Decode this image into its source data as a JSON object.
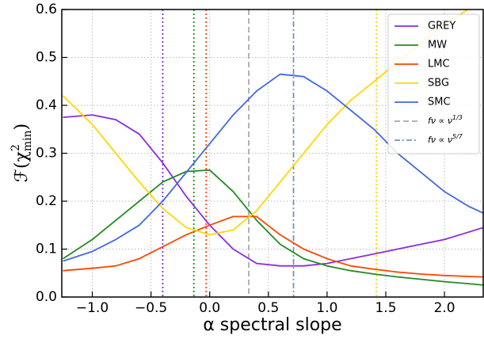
{
  "chart_data": {
    "type": "line",
    "xlabel": "α spectral slope",
    "ylabel": {
      "main": "ℱ(χ",
      "sup": "2",
      "sub": "min",
      "close": ")"
    },
    "x": [
      -1.25,
      -1.0,
      -0.8,
      -0.6,
      -0.4,
      -0.2,
      0,
      0.2,
      0.4,
      0.6,
      0.8,
      1.0,
      1.2,
      1.4,
      1.6,
      1.8,
      2.0,
      2.2,
      2.33
    ],
    "series": [
      {
        "name": "GREY",
        "color": "#8a2be2",
        "values": [
          0.375,
          0.38,
          0.37,
          0.34,
          0.28,
          0.21,
          0.15,
          0.1,
          0.07,
          0.065,
          0.065,
          0.07,
          0.08,
          0.09,
          0.1,
          0.11,
          0.12,
          0.135,
          0.145
        ]
      },
      {
        "name": "MW",
        "color": "#228b22",
        "values": [
          0.08,
          0.12,
          0.16,
          0.2,
          0.24,
          0.262,
          0.265,
          0.22,
          0.16,
          0.11,
          0.08,
          0.065,
          0.055,
          0.048,
          0.042,
          0.037,
          0.032,
          0.028,
          0.025
        ]
      },
      {
        "name": "LMC",
        "color": "#ff4500",
        "values": [
          0.055,
          0.06,
          0.065,
          0.08,
          0.105,
          0.13,
          0.15,
          0.168,
          0.168,
          0.13,
          0.1,
          0.08,
          0.065,
          0.058,
          0.052,
          0.048,
          0.045,
          0.043,
          0.042
        ]
      },
      {
        "name": "SBG",
        "color": "#ffd700",
        "values": [
          0.42,
          0.36,
          0.3,
          0.24,
          0.185,
          0.145,
          0.13,
          0.14,
          0.18,
          0.24,
          0.3,
          0.36,
          0.41,
          0.45,
          0.49,
          0.53,
          0.57,
          0.6,
          null
        ]
      },
      {
        "name": "SMC",
        "color": "#4169e1",
        "values": [
          0.075,
          0.095,
          0.12,
          0.15,
          0.2,
          0.26,
          0.32,
          0.38,
          0.43,
          0.465,
          0.46,
          0.43,
          0.39,
          0.35,
          0.3,
          0.26,
          0.22,
          0.19,
          0.175
        ]
      }
    ],
    "vlines": [
      {
        "x": -0.4,
        "color": "#8a2be2",
        "style": "dotted"
      },
      {
        "x": -0.135,
        "color": "#228b22",
        "style": "dotted"
      },
      {
        "x": -0.03,
        "color": "#ff4500",
        "style": "dotted"
      },
      {
        "x": 0.333,
        "color": "#aaaaaa",
        "style": "dashed",
        "name": {
          "base": "fν ∝ ν",
          "sup": "1/3"
        }
      },
      {
        "x": 0.714,
        "color": "#8090b0",
        "style": "dashdot",
        "name": {
          "base": "fν ∝ ν",
          "sup": "5/7"
        }
      },
      {
        "x": 1.42,
        "color": "#ffd700",
        "style": "dotted"
      }
    ],
    "xlim": [
      -1.26,
      2.33
    ],
    "ylim": [
      0,
      0.6
    ],
    "xticks": [
      {
        "value": -1.0,
        "label": "−1.0"
      },
      {
        "value": -0.5,
        "label": "−0.5"
      },
      {
        "value": 0,
        "label": "0.0"
      },
      0.5,
      {
        "value": 1.0,
        "label": "1.0"
      },
      1.5,
      {
        "value": 2.0,
        "label": "2.0"
      }
    ],
    "yticks": [
      {
        "value": 0,
        "label": "0.0"
      },
      0.1,
      0.2,
      0.3,
      0.4,
      0.5,
      0.6
    ],
    "grid": true,
    "legend": "upper right"
  }
}
